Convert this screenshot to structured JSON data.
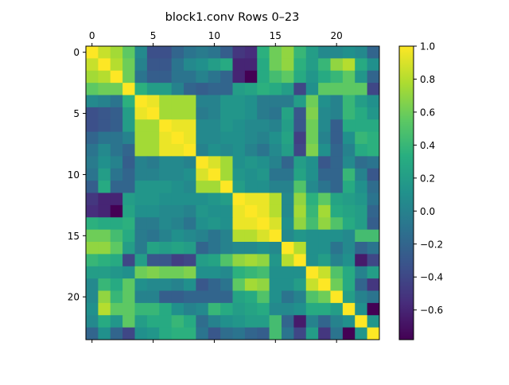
{
  "chart_data": {
    "type": "heatmap",
    "title": "block1.conv Rows 0–23",
    "xlabel": "",
    "ylabel": "",
    "rows": 24,
    "cols": 24,
    "x_ticks": [
      0,
      5,
      10,
      15,
      20
    ],
    "y_ticks": [
      0,
      5,
      10,
      15,
      20
    ],
    "x_tick_position": "top",
    "colormap": "viridis",
    "colorbar": {
      "min": -0.78,
      "max": 1.0,
      "ticks": [
        1.0,
        0.8,
        0.6,
        0.4,
        0.2,
        0.0,
        -0.2,
        -0.4,
        -0.6
      ],
      "tick_labels": [
        "1.0",
        "0.8",
        "0.6",
        "0.4",
        "0.2",
        "0.0",
        "−0.2",
        "−0.4",
        "−0.6"
      ]
    },
    "grid": false,
    "values": [
      [
        1.0,
        0.85,
        0.75,
        0.55,
        0.05,
        -0.35,
        -0.35,
        -0.2,
        -0.1,
        -0.05,
        -0.1,
        -0.25,
        -0.5,
        -0.55,
        0.35,
        0.6,
        0.7,
        0.4,
        0.2,
        0.05,
        0.05,
        0.1,
        0.05,
        -0.2
      ],
      [
        0.85,
        1.0,
        0.8,
        0.6,
        0.0,
        -0.3,
        -0.3,
        -0.1,
        0.05,
        0.1,
        0.2,
        0.3,
        -0.6,
        -0.6,
        0.3,
        0.6,
        0.7,
        0.35,
        0.2,
        0.4,
        0.7,
        0.8,
        0.3,
        0.1
      ],
      [
        0.75,
        0.8,
        1.0,
        0.6,
        -0.1,
        -0.25,
        -0.25,
        -0.1,
        -0.1,
        0.0,
        -0.1,
        -0.2,
        -0.6,
        -0.78,
        0.3,
        0.45,
        0.55,
        0.3,
        0.15,
        0.3,
        0.4,
        0.55,
        0.15,
        -0.2
      ],
      [
        0.55,
        0.6,
        0.6,
        1.0,
        0.35,
        0.2,
        0.2,
        0.0,
        -0.2,
        -0.25,
        -0.2,
        -0.2,
        0.2,
        0.25,
        0.35,
        0.3,
        0.2,
        -0.4,
        0.1,
        0.55,
        0.55,
        0.55,
        0.55,
        -0.4
      ],
      [
        0.05,
        0.0,
        -0.1,
        0.35,
        1.0,
        0.95,
        0.75,
        0.75,
        0.75,
        0.0,
        0.0,
        0.15,
        0.15,
        0.1,
        -0.05,
        -0.05,
        -0.05,
        0.2,
        0.6,
        0.1,
        0.0,
        0.4,
        0.2,
        0.1
      ],
      [
        -0.35,
        -0.3,
        -0.25,
        0.2,
        0.95,
        1.0,
        0.75,
        0.75,
        0.75,
        -0.05,
        0.0,
        0.15,
        0.15,
        0.1,
        -0.05,
        -0.1,
        0.25,
        -0.3,
        0.65,
        0.05,
        0.0,
        0.4,
        0.3,
        0.15
      ],
      [
        -0.35,
        -0.3,
        -0.25,
        0.2,
        0.75,
        0.75,
        1.0,
        0.95,
        0.95,
        0.05,
        0.05,
        0.15,
        0.1,
        0.05,
        0.05,
        0.0,
        0.2,
        -0.3,
        0.6,
        0.05,
        -0.25,
        0.3,
        0.3,
        0.3
      ],
      [
        -0.2,
        -0.1,
        -0.1,
        0.0,
        0.75,
        0.75,
        0.95,
        1.0,
        0.95,
        0.05,
        0.05,
        0.1,
        0.1,
        0.05,
        0.0,
        0.1,
        0.25,
        -0.45,
        0.6,
        0.0,
        -0.25,
        0.1,
        0.4,
        0.35
      ],
      [
        -0.1,
        0.05,
        -0.1,
        -0.2,
        0.75,
        0.75,
        0.95,
        0.95,
        1.0,
        0.0,
        0.1,
        0.05,
        0.1,
        0.0,
        -0.1,
        0.05,
        0.2,
        -0.4,
        0.65,
        0.1,
        -0.2,
        0.0,
        0.3,
        0.35
      ],
      [
        -0.05,
        0.1,
        0.0,
        -0.25,
        0.0,
        -0.05,
        0.05,
        0.05,
        0.0,
        1.0,
        0.9,
        0.75,
        0.1,
        0.15,
        0.1,
        0.0,
        -0.2,
        0.2,
        0.1,
        -0.3,
        -0.2,
        0.05,
        -0.15,
        -0.1
      ],
      [
        -0.1,
        0.2,
        -0.1,
        -0.2,
        0.0,
        0.0,
        0.05,
        0.05,
        0.1,
        0.9,
        1.0,
        0.75,
        0.15,
        0.1,
        0.15,
        -0.1,
        -0.1,
        0.25,
        0.1,
        -0.2,
        -0.2,
        0.4,
        0.0,
        -0.3
      ],
      [
        -0.25,
        0.3,
        -0.2,
        -0.2,
        0.15,
        0.15,
        0.15,
        0.1,
        0.05,
        0.75,
        0.75,
        1.0,
        0.2,
        0.1,
        0.1,
        0.0,
        0.0,
        0.5,
        0.05,
        -0.1,
        -0.2,
        0.3,
        0.1,
        -0.15
      ],
      [
        -0.5,
        -0.6,
        -0.6,
        0.2,
        0.15,
        0.15,
        0.1,
        0.1,
        0.1,
        0.1,
        0.15,
        0.2,
        1.0,
        0.95,
        0.95,
        0.8,
        0.05,
        0.7,
        0.35,
        0.55,
        0.25,
        0.2,
        0.15,
        -0.1
      ],
      [
        -0.55,
        -0.6,
        -0.78,
        0.25,
        0.1,
        0.1,
        0.05,
        0.05,
        0.0,
        0.15,
        0.1,
        0.1,
        0.95,
        1.0,
        0.95,
        0.8,
        0.05,
        0.75,
        0.4,
        0.75,
        0.3,
        0.25,
        0.2,
        -0.2
      ],
      [
        0.35,
        0.3,
        0.3,
        0.35,
        -0.05,
        -0.05,
        0.05,
        0.0,
        -0.1,
        0.1,
        0.15,
        0.1,
        0.95,
        0.95,
        1.0,
        0.9,
        0.1,
        0.7,
        0.45,
        0.7,
        0.5,
        0.3,
        0.2,
        -0.25
      ],
      [
        0.6,
        0.6,
        0.45,
        0.3,
        -0.05,
        -0.1,
        0.0,
        0.1,
        0.05,
        0.0,
        -0.1,
        0.0,
        0.8,
        0.8,
        0.9,
        1.0,
        0.05,
        0.15,
        0.1,
        0.1,
        0.1,
        0.05,
        0.45,
        0.45
      ],
      [
        0.7,
        0.7,
        0.55,
        0.2,
        -0.05,
        0.25,
        0.2,
        0.25,
        0.2,
        -0.2,
        -0.1,
        0.0,
        0.05,
        0.05,
        0.1,
        0.05,
        1.0,
        0.8,
        0.1,
        0.1,
        -0.1,
        0.05,
        -0.2,
        -0.1
      ],
      [
        0.4,
        0.35,
        0.3,
        -0.4,
        0.2,
        -0.3,
        -0.3,
        -0.45,
        -0.4,
        0.2,
        0.25,
        0.5,
        0.7,
        0.75,
        0.7,
        0.15,
        0.8,
        1.0,
        0.1,
        0.2,
        0.0,
        0.1,
        -0.65,
        -0.4
      ],
      [
        0.2,
        0.2,
        0.15,
        0.1,
        0.6,
        0.65,
        0.6,
        0.6,
        0.65,
        0.1,
        0.1,
        0.05,
        0.35,
        0.4,
        0.45,
        0.1,
        0.1,
        0.1,
        1.0,
        0.85,
        0.5,
        0.3,
        0.0,
        0.2
      ],
      [
        0.05,
        0.4,
        0.3,
        0.55,
        0.1,
        0.05,
        0.05,
        0.0,
        0.1,
        -0.3,
        -0.2,
        -0.1,
        0.55,
        0.75,
        0.7,
        0.1,
        0.1,
        0.2,
        0.85,
        1.0,
        0.6,
        0.3,
        -0.2,
        -0.5
      ],
      [
        0.05,
        0.7,
        0.4,
        0.55,
        0.0,
        0.0,
        -0.25,
        -0.25,
        -0.2,
        -0.2,
        -0.2,
        -0.2,
        0.25,
        0.3,
        0.5,
        0.1,
        -0.1,
        0.0,
        0.5,
        0.6,
        1.0,
        0.2,
        0.0,
        -0.1
      ],
      [
        0.1,
        0.8,
        0.55,
        0.55,
        0.4,
        0.4,
        0.3,
        0.1,
        0.0,
        0.05,
        0.4,
        0.3,
        0.2,
        0.25,
        0.3,
        0.05,
        0.05,
        0.1,
        0.3,
        0.3,
        0.2,
        1.0,
        0.1,
        -0.78
      ],
      [
        0.05,
        0.3,
        0.15,
        0.55,
        0.2,
        0.3,
        0.3,
        0.4,
        0.3,
        -0.15,
        0.0,
        0.1,
        0.15,
        0.2,
        0.2,
        0.45,
        -0.2,
        -0.65,
        0.0,
        -0.2,
        0.0,
        0.1,
        1.0,
        0.15
      ],
      [
        -0.2,
        0.1,
        -0.2,
        -0.4,
        0.1,
        0.15,
        0.3,
        0.35,
        0.35,
        -0.1,
        -0.3,
        -0.15,
        -0.1,
        -0.2,
        -0.25,
        0.45,
        -0.1,
        -0.4,
        0.2,
        -0.5,
        -0.1,
        -0.78,
        0.15,
        1.0
      ]
    ]
  }
}
